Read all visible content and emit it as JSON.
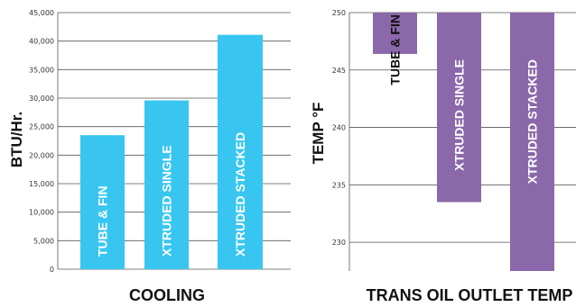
{
  "chart_data": [
    {
      "type": "bar",
      "xlabel": "COOLING",
      "ylabel": "BTU/Hr.",
      "ylim": [
        0,
        45000
      ],
      "yticks": [
        "0",
        "5,000",
        "10,000",
        "15,000",
        "20,000",
        "25,000",
        "30,000",
        "35,000",
        "40,000",
        "45,000"
      ],
      "grid": true,
      "categories": [
        "TUBE & FIN",
        "XTRUDED SINGLE",
        "XTRUDED STACKED"
      ],
      "values": [
        23500,
        29600,
        41100
      ],
      "color": "#38c6f0",
      "label_color": "#ffffff"
    },
    {
      "type": "bar",
      "xlabel": "TRANS OIL OUTLET TEMP",
      "ylabel": "TEMP °F",
      "ylim": [
        227.5,
        250
      ],
      "yticks": [
        "230",
        "235",
        "240",
        "245",
        "250"
      ],
      "grid": true,
      "categories": [
        "TUBE & FIN",
        "XTRUDED SINGLE",
        "XTRUDED STACKED"
      ],
      "values": [
        246.4,
        233.5,
        227.5
      ],
      "color": "#8a68a9",
      "label_color": "#111111",
      "label_color_inside": "#ffffff"
    }
  ]
}
